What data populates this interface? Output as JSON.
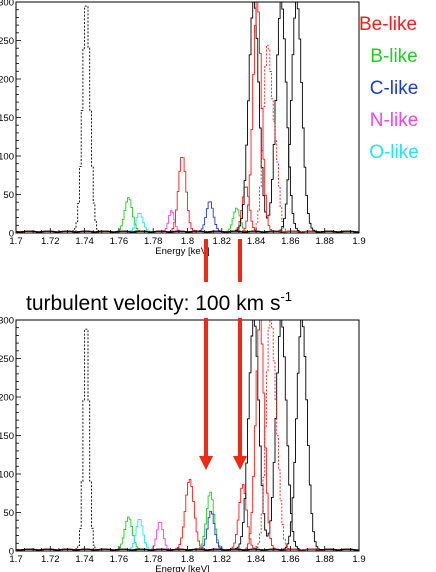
{
  "colors": {
    "Be": "#ff1a1a",
    "B": "#22cc22",
    "C": "#1a3ccc",
    "N": "#ee44ee",
    "O": "#22e6f0",
    "other": "#000000",
    "arrow": "#ee2a16"
  },
  "legend": [
    "Be-like",
    "B-like",
    "C-like",
    "N-like",
    "O-like"
  ],
  "annotation": {
    "main": "turbulent velocity: 100 km s",
    "sup": "-1"
  },
  "chart_data": [
    {
      "type": "line",
      "panel": "top",
      "xlabel": "Energy [keV]",
      "xlim": [
        1.7,
        1.9
      ],
      "ylim": [
        0,
        300
      ],
      "xticks": [
        "1.7",
        "1.72",
        "1.74",
        "1.76",
        "1.78",
        "1.8",
        "1.82",
        "1.84",
        "1.86",
        "1.88",
        "1.9"
      ],
      "yticks": [
        "0",
        "50",
        "100",
        "150",
        "200",
        "250",
        "300"
      ],
      "series": [
        {
          "ion": "other",
          "dash": true,
          "peaks": [
            {
              "x": 1.7405,
              "h": 300,
              "w": 0.0022
            }
          ]
        },
        {
          "ion": "B",
          "dash": false,
          "peaks": [
            {
              "x": 1.7652,
              "h": 44,
              "w": 0.0022
            }
          ]
        },
        {
          "ion": "O",
          "dash": false,
          "peaks": [
            {
              "x": 1.7715,
              "h": 24,
              "w": 0.002
            }
          ]
        },
        {
          "ion": "N",
          "dash": false,
          "peaks": [
            {
              "x": 1.7902,
              "h": 28,
              "w": 0.0016
            }
          ]
        },
        {
          "ion": "Be",
          "dash": false,
          "peaks": [
            {
              "x": 1.7965,
              "h": 98,
              "w": 0.0022
            }
          ]
        },
        {
          "ion": "C",
          "dash": false,
          "peaks": [
            {
              "x": 1.8125,
              "h": 40,
              "w": 0.002
            }
          ]
        },
        {
          "ion": "B",
          "dash": false,
          "peaks": [
            {
              "x": 1.8282,
              "h": 30,
              "w": 0.002
            }
          ]
        },
        {
          "ion": "Be",
          "dash": false,
          "peaks": [
            {
              "x": 1.8335,
              "h": 60,
              "w": 0.002
            }
          ]
        },
        {
          "ion": "other",
          "dash": false,
          "peaks": [
            {
              "x": 1.8382,
              "h": 300,
              "w": 0.003
            },
            {
              "x": 1.8542,
              "h": 300,
              "w": 0.003
            }
          ]
        },
        {
          "ion": "Be",
          "dash": false,
          "peaks": [
            {
              "x": 1.8402,
              "h": 300,
              "w": 0.0025
            }
          ]
        },
        {
          "ion": "Be",
          "dash": true,
          "peaks": [
            {
              "x": 1.8462,
              "h": 240,
              "w": 0.0025
            },
            {
              "x": 1.8512,
              "h": 80,
              "w": 0.002
            }
          ]
        },
        {
          "ion": "other",
          "dash": false,
          "peaks": [
            {
              "x": 1.8632,
              "h": 300,
              "w": 0.003
            }
          ]
        }
      ]
    },
    {
      "type": "line",
      "panel": "bottom",
      "xlabel": "Energy [keV]",
      "xlim": [
        1.7,
        1.9
      ],
      "ylim": [
        0,
        300
      ],
      "xticks": [
        "1.7",
        "1.72",
        "1.74",
        "1.76",
        "1.78",
        "1.8",
        "1.82",
        "1.84",
        "1.86",
        "1.88",
        "1.9"
      ],
      "yticks": [
        "0",
        "50",
        "100",
        "150",
        "200",
        "250",
        "300"
      ],
      "series": [
        {
          "ion": "other",
          "dash": true,
          "peaks": [
            {
              "x": 1.7405,
              "h": 300,
              "w": 0.0016
            }
          ]
        },
        {
          "ion": "B",
          "dash": false,
          "peaks": [
            {
              "x": 1.7652,
              "h": 42,
              "w": 0.0022
            }
          ]
        },
        {
          "ion": "O",
          "dash": false,
          "peaks": [
            {
              "x": 1.7715,
              "h": 40,
              "w": 0.002
            }
          ]
        },
        {
          "ion": "N",
          "dash": false,
          "peaks": [
            {
              "x": 1.7835,
              "h": 36,
              "w": 0.0018
            }
          ]
        },
        {
          "ion": "Be",
          "dash": false,
          "peaks": [
            {
              "x": 1.8008,
              "h": 92,
              "w": 0.0025
            }
          ]
        },
        {
          "ion": "B",
          "dash": false,
          "peaks": [
            {
              "x": 1.8128,
              "h": 75,
              "w": 0.0022
            }
          ]
        },
        {
          "ion": "C",
          "dash": false,
          "peaks": [
            {
              "x": 1.8132,
              "h": 50,
              "w": 0.002
            }
          ]
        },
        {
          "ion": "Be",
          "dash": false,
          "peaks": [
            {
              "x": 1.8318,
              "h": 85,
              "w": 0.0022
            }
          ]
        },
        {
          "ion": "other",
          "dash": false,
          "peaks": [
            {
              "x": 1.8382,
              "h": 300,
              "w": 0.003
            },
            {
              "x": 1.8542,
              "h": 300,
              "w": 0.003
            }
          ]
        },
        {
          "ion": "Be",
          "dash": false,
          "peaks": [
            {
              "x": 1.8418,
              "h": 300,
              "w": 0.0025
            }
          ]
        },
        {
          "ion": "Be",
          "dash": true,
          "peaks": [
            {
              "x": 1.8478,
              "h": 300,
              "w": 0.0025
            },
            {
              "x": 1.8522,
              "h": 75,
              "w": 0.002
            }
          ]
        },
        {
          "ion": "other",
          "dash": false,
          "peaks": [
            {
              "x": 1.8662,
              "h": 300,
              "w": 0.003
            }
          ]
        }
      ]
    }
  ]
}
